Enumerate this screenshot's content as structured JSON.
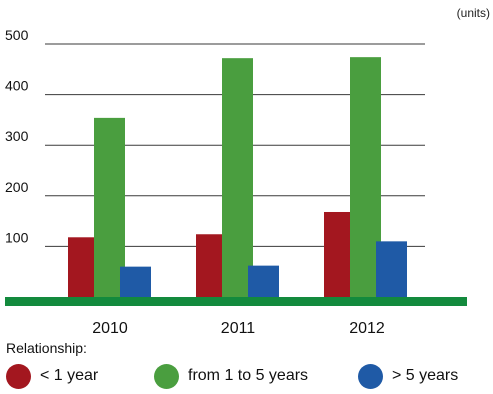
{
  "chart_data": {
    "type": "bar",
    "title": "",
    "unit_label": "(units)",
    "xlabel": "",
    "ylabel": "",
    "categories": [
      "2010",
      "2011",
      "2012"
    ],
    "ylim": [
      0,
      500
    ],
    "yticks": [
      100,
      200,
      300,
      400,
      500
    ],
    "grid": true,
    "series": [
      {
        "name": "< 1 year",
        "color": "#a3171f",
        "values": [
          118,
          124,
          168
        ]
      },
      {
        "name": "from 1 to 5 years",
        "color": "#4a9e3f",
        "values": [
          354,
          472,
          474
        ]
      },
      {
        "name": "> 5 years",
        "color": "#1f5aa6",
        "values": [
          60,
          62,
          110
        ]
      }
    ],
    "baseline_color": "#138a3d",
    "legend": {
      "title": "Relationship:",
      "placement": "bottom"
    }
  }
}
